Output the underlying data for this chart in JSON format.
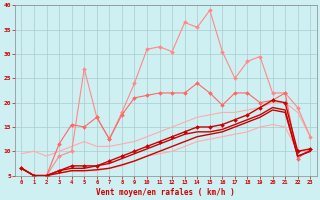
{
  "background_color": "#cff0f2",
  "grid_color": "#aacccc",
  "xlabel": "Vent moyen/en rafales ( km/h )",
  "xlabel_color": "#cc0000",
  "tick_color": "#cc0000",
  "xmin": 0,
  "xmax": 23,
  "ymin": 5,
  "ymax": 40,
  "yticks": [
    5,
    10,
    15,
    20,
    25,
    30,
    35,
    40
  ],
  "series": [
    {
      "x": [
        0,
        1,
        2,
        3,
        4,
        5,
        6,
        7,
        8,
        9,
        10,
        11,
        12,
        13,
        14,
        15,
        16,
        17,
        18,
        19,
        20,
        21,
        22,
        23
      ],
      "y": [
        9.5,
        10,
        9,
        10,
        11,
        12,
        11,
        11,
        11.5,
        12,
        13,
        14,
        15,
        16,
        17,
        17.5,
        18,
        18,
        18.5,
        19,
        20,
        20,
        18,
        13
      ],
      "color": "#ffaaaa",
      "linewidth": 0.8,
      "marker": null,
      "markersize": 0
    },
    {
      "x": [
        0,
        1,
        2,
        3,
        4,
        5,
        6,
        7,
        8,
        9,
        10,
        11,
        12,
        13,
        14,
        15,
        16,
        17,
        18,
        19,
        20,
        21,
        22,
        23
      ],
      "y": [
        6.5,
        5,
        5,
        5.5,
        6,
        6,
        6,
        6.5,
        7,
        8,
        9,
        9.5,
        10,
        11,
        12,
        12.5,
        13,
        13.5,
        14,
        15,
        15.5,
        15,
        10,
        10
      ],
      "color": "#ffaaaa",
      "linewidth": 0.8,
      "marker": null,
      "markersize": 0
    },
    {
      "x": [
        0,
        1,
        2,
        3,
        4,
        5,
        6,
        7,
        8,
        9,
        10,
        11,
        12,
        13,
        14,
        15,
        16,
        17,
        18,
        19,
        20,
        21,
        22,
        23
      ],
      "y": [
        6.5,
        5,
        5,
        9,
        10,
        27,
        17,
        12.5,
        18,
        24,
        31,
        31.5,
        30.5,
        36.5,
        35.5,
        39,
        30.5,
        25,
        28.5,
        29.5,
        22,
        22,
        19,
        13
      ],
      "color": "#ff8888",
      "linewidth": 0.8,
      "marker": "D",
      "markersize": 2
    },
    {
      "x": [
        0,
        1,
        2,
        3,
        4,
        5,
        6,
        7,
        8,
        9,
        10,
        11,
        12,
        13,
        14,
        15,
        16,
        17,
        18,
        19,
        20,
        21,
        22,
        23
      ],
      "y": [
        6.5,
        5,
        5,
        11.5,
        15.5,
        15,
        17,
        12.5,
        17.5,
        21,
        21.5,
        22,
        22,
        22,
        24,
        22,
        19.5,
        22,
        22,
        20,
        20.5,
        22,
        8.5,
        10.5
      ],
      "color": "#ff6666",
      "linewidth": 0.8,
      "marker": "D",
      "markersize": 2
    },
    {
      "x": [
        0,
        1,
        2,
        3,
        4,
        5,
        6,
        7,
        8,
        9,
        10,
        11,
        12,
        13,
        14,
        15,
        16,
        17,
        18,
        19,
        20,
        21,
        22,
        23
      ],
      "y": [
        6.5,
        5,
        5,
        5.5,
        6,
        6,
        6.2,
        6.5,
        7.2,
        8,
        9,
        10,
        11,
        12,
        13,
        13.5,
        14,
        15,
        16,
        17,
        18.5,
        18,
        9,
        10
      ],
      "color": "#cc0000",
      "linewidth": 1.0,
      "marker": null,
      "markersize": 0
    },
    {
      "x": [
        0,
        1,
        2,
        3,
        4,
        5,
        6,
        7,
        8,
        9,
        10,
        11,
        12,
        13,
        14,
        15,
        16,
        17,
        18,
        19,
        20,
        21,
        22,
        23
      ],
      "y": [
        6.5,
        5,
        5,
        6,
        7,
        7,
        7,
        8,
        9,
        10,
        11,
        12,
        13,
        14,
        15,
        15,
        15.5,
        16.5,
        17.5,
        19,
        20.5,
        20,
        10,
        10.5
      ],
      "color": "#cc0000",
      "linewidth": 1.0,
      "marker": "D",
      "markersize": 2
    },
    {
      "x": [
        0,
        1,
        2,
        3,
        4,
        5,
        6,
        7,
        8,
        9,
        10,
        11,
        12,
        13,
        14,
        15,
        16,
        17,
        18,
        19,
        20,
        21,
        22,
        23
      ],
      "y": [
        6.5,
        5,
        5,
        6,
        6.5,
        6.5,
        7,
        7.5,
        8.5,
        9.5,
        10.5,
        11.5,
        12.5,
        13.5,
        14,
        14,
        14.5,
        15.5,
        16.5,
        17.5,
        19,
        18.5,
        9,
        10
      ],
      "color": "#cc0000",
      "linewidth": 1.0,
      "marker": null,
      "markersize": 0
    }
  ]
}
